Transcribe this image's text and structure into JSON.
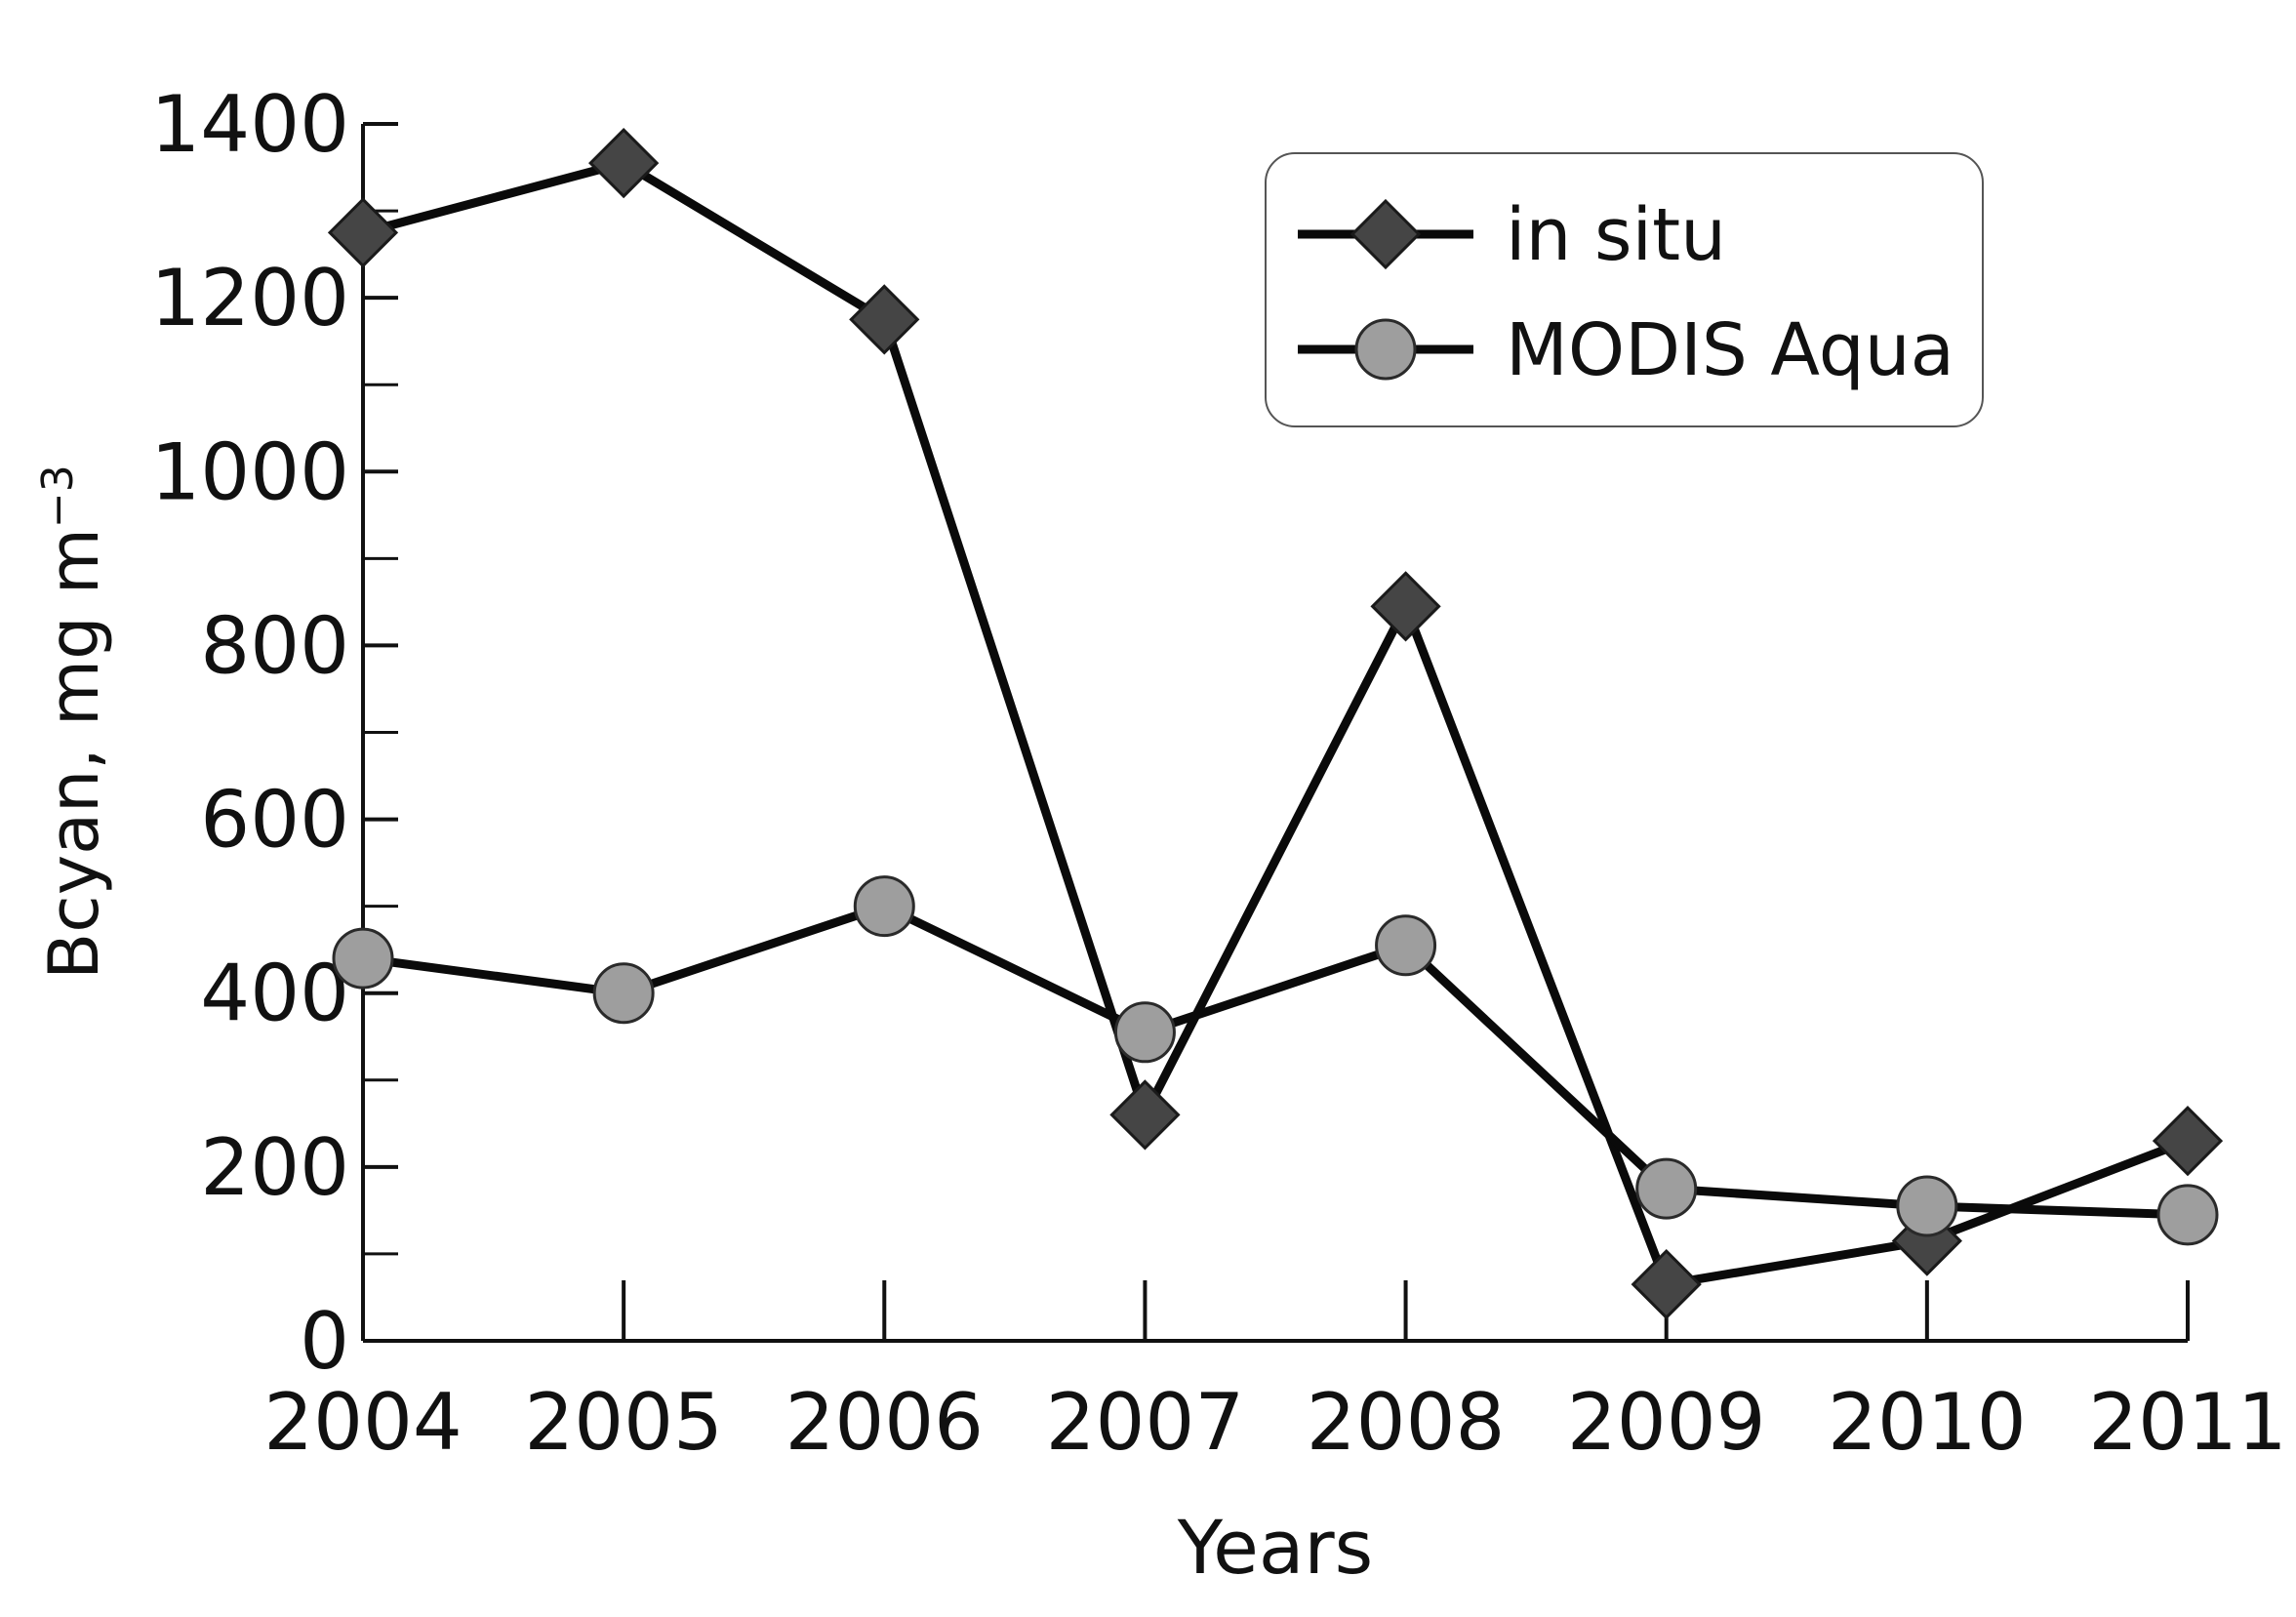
{
  "chart_data": {
    "type": "line",
    "title": "",
    "xlabel": "Years",
    "ylabel": "Bcyan, mg m",
    "ylabel_superscript": "−3",
    "categories": [
      "2004",
      "2005",
      "2006",
      "2007",
      "2008",
      "2009",
      "2010",
      "2011"
    ],
    "ylim": [
      0,
      1400
    ],
    "yticks": [
      "0",
      "200",
      "400",
      "600",
      "800",
      "1000",
      "1200",
      "1400"
    ],
    "grid": false,
    "legend_position": "top-right",
    "series": [
      {
        "name": "in situ",
        "marker": "diamond",
        "color": "#454545",
        "values": [
          1275,
          1355,
          1175,
          260,
          845,
          65,
          115,
          230
        ]
      },
      {
        "name": "MODIS Aqua",
        "marker": "circle",
        "color": "#9e9e9e",
        "values": [
          440,
          400,
          500,
          355,
          455,
          175,
          155,
          145
        ]
      }
    ]
  }
}
